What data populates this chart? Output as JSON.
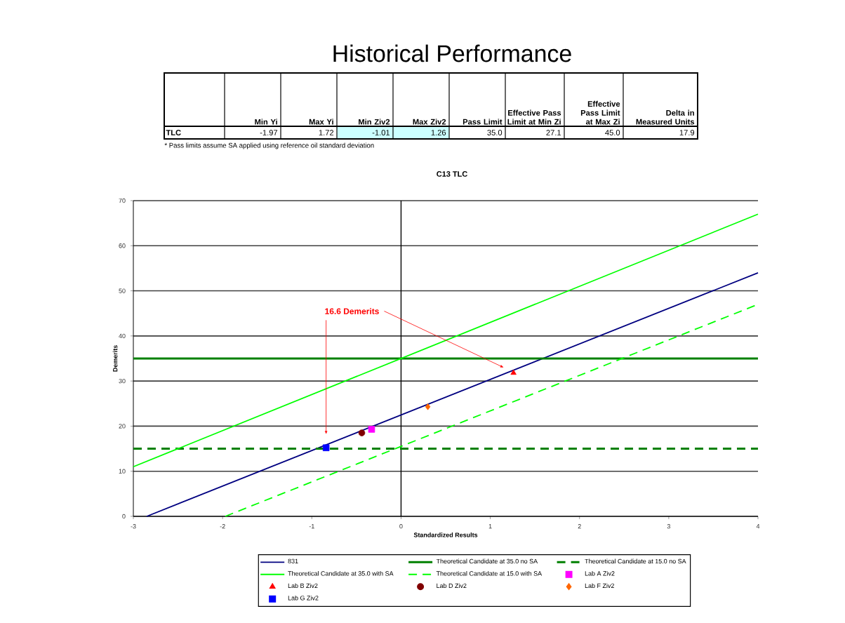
{
  "chart_data": {
    "type": "line",
    "title": "Historical Performance",
    "subtitle": "C13 TLC",
    "xlabel": "Standardized Results",
    "ylabel": "Demerits",
    "xlim": [
      -3,
      4
    ],
    "ylim": [
      0,
      70
    ],
    "xticks": [
      -3,
      -2,
      -1,
      0,
      1,
      2,
      3,
      4
    ],
    "yticks": [
      0,
      10,
      20,
      30,
      40,
      50,
      60,
      70
    ],
    "grid": "y",
    "legend": "bottom",
    "ref_lines": [
      {
        "axis": "x",
        "value": 0,
        "color": "#000000"
      }
    ],
    "annotations": [
      "Min Yi",
      "Max Yi",
      "Min Ziv2",
      "Max Ziv2",
      "Pass Limit",
      "Effective Pass Limit at Min Zi",
      "Effective Pass Limit at Max Zi",
      "Delta in Measured Units",
      "TLC",
      "-1.97",
      "1.72",
      "-1.01",
      "1.26",
      "35.0",
      "27.1",
      "45.0",
      "17.9",
      "* Pass limits assume SA applied using reference oil standard deviation",
      "16.6 Demerits"
    ],
    "series": [
      {
        "name": "831",
        "type": "line",
        "color": "#000080",
        "line_style": "solid",
        "x": [
          -2.85,
          4
        ],
        "values": [
          0,
          54
        ]
      },
      {
        "name": "Theoretical Candidate at 35.0 no SA",
        "type": "line",
        "color": "#008000",
        "line_style": "solid",
        "x": [
          -3,
          4
        ],
        "values": [
          35,
          35
        ]
      },
      {
        "name": "Theoretical Candidate at 15.0 no SA",
        "type": "line",
        "color": "#008000",
        "line_style": "dashed",
        "x": [
          -3,
          4
        ],
        "values": [
          15,
          15
        ]
      },
      {
        "name": "Theoretical Candidate at 35.0 with SA",
        "type": "line",
        "color": "#00ff00",
        "line_style": "solid",
        "x": [
          -3,
          4
        ],
        "values": [
          11,
          67
        ]
      },
      {
        "name": "Theoretical Candidate at 15.0 with SA",
        "type": "line",
        "color": "#00ff00",
        "line_style": "dashed",
        "x": [
          -1.97,
          4
        ],
        "values": [
          0,
          47
        ]
      },
      {
        "name": "Lab A Ziv2",
        "type": "scatter",
        "color": "#ff00ff",
        "marker": "square",
        "x": [
          -0.33
        ],
        "values": [
          19.3
        ]
      },
      {
        "name": "Lab B Ziv2",
        "type": "scatter",
        "color": "#ff0000",
        "marker": "triangle",
        "x": [
          1.26
        ],
        "values": [
          31.8
        ]
      },
      {
        "name": "Lab D Ziv2",
        "type": "scatter",
        "color": "#800000",
        "marker": "circle",
        "x": [
          -0.44
        ],
        "values": [
          18.5
        ]
      },
      {
        "name": "Lab F Ziv2",
        "type": "scatter",
        "color": "#ff6600",
        "marker": "diamond",
        "x": [
          0.3
        ],
        "values": [
          24.3
        ]
      },
      {
        "name": "Lab G Ziv2",
        "type": "scatter",
        "color": "#0000ff",
        "marker": "square",
        "x": [
          -0.84
        ],
        "values": [
          15.2
        ]
      }
    ]
  }
}
